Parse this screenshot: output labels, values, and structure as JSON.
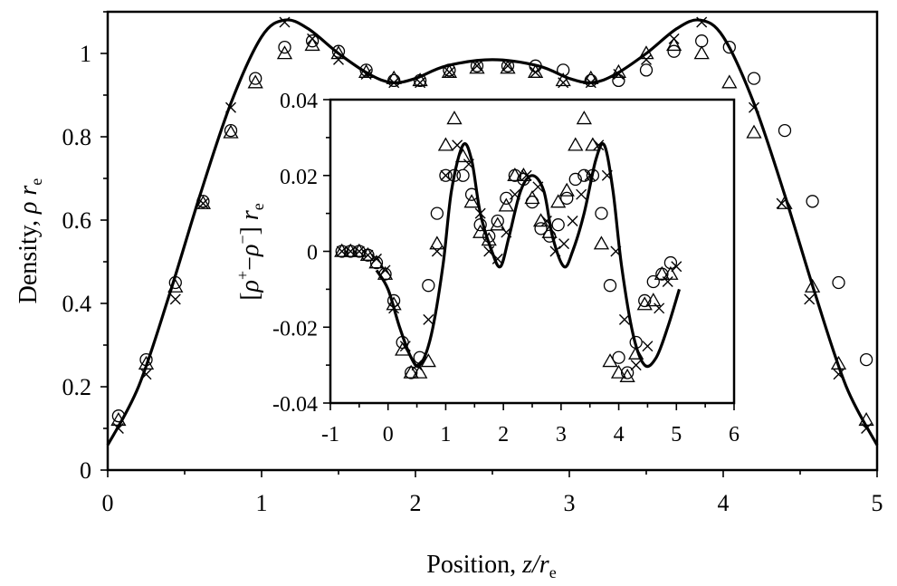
{
  "chart_data": [
    {
      "type": "line",
      "xlabel": {
        "main": "Position, ",
        "var": "z/r",
        "sub": "e"
      },
      "ylabel": {
        "main": "Density, ",
        "var": "ρ r",
        "sub": "e"
      },
      "xlim": [
        0,
        5
      ],
      "ylim": [
        0,
        1.1
      ],
      "xticks": [
        "0",
        "1",
        "2",
        "3",
        "4",
        "5"
      ],
      "yticks": [
        "0",
        "0.2",
        "0.4",
        "0.6",
        "0.8",
        "1"
      ],
      "grid": false,
      "series": [
        {
          "marker": "line",
          "x": [
            0,
            0.2,
            0.4,
            0.6,
            0.8,
            1.0,
            1.15,
            1.3,
            1.5,
            1.7,
            1.85,
            2.0,
            2.2,
            2.5,
            2.8,
            3.0,
            3.15,
            3.3,
            3.5,
            3.7,
            3.85,
            4.0,
            4.2,
            4.4,
            4.6,
            4.8,
            5.0
          ],
          "y": [
            0.06,
            0.2,
            0.42,
            0.66,
            0.88,
            1.04,
            1.08,
            1.06,
            1.0,
            0.95,
            0.93,
            0.94,
            0.97,
            0.985,
            0.97,
            0.94,
            0.93,
            0.95,
            1.0,
            1.06,
            1.08,
            1.04,
            0.88,
            0.66,
            0.42,
            0.2,
            0.06
          ]
        },
        {
          "marker": "circle",
          "x": [
            0.07,
            0.25,
            0.44,
            0.62,
            0.8,
            0.96,
            1.15,
            1.33,
            1.5,
            1.68,
            1.86,
            2.03,
            2.22,
            2.4,
            2.6,
            2.78,
            2.96,
            3.14,
            3.32,
            3.5,
            3.68,
            3.86,
            4.04,
            4.2,
            4.4,
            4.58,
            4.75,
            4.93
          ],
          "y": [
            0.13,
            0.265,
            0.45,
            0.645,
            0.815,
            0.94,
            1.015,
            1.03,
            1.005,
            0.96,
            0.935,
            0.935,
            0.96,
            0.97,
            0.97,
            0.97,
            0.96,
            0.935,
            0.935,
            0.96,
            1.005,
            1.03,
            1.015,
            0.94,
            0.815,
            0.645,
            0.45,
            0.265
          ]
        },
        {
          "marker": "triangle",
          "x": [
            0.07,
            0.25,
            0.44,
            0.62,
            0.8,
            0.96,
            1.15,
            1.33,
            1.5,
            1.68,
            1.86,
            2.03,
            2.22,
            2.4,
            2.6,
            2.78,
            2.96,
            3.14,
            3.32,
            3.5,
            3.68,
            3.86,
            4.04,
            4.2,
            4.4,
            4.58,
            4.75,
            4.93
          ],
          "y": [
            0.12,
            0.255,
            0.44,
            0.64,
            0.81,
            0.93,
            1.0,
            1.02,
            1.0,
            0.955,
            0.94,
            0.935,
            0.955,
            0.965,
            0.965,
            0.955,
            0.935,
            0.94,
            0.955,
            1.0,
            1.02,
            1.0,
            0.93,
            0.81,
            0.64,
            0.44,
            0.255,
            0.12
          ]
        },
        {
          "marker": "cross",
          "x": [
            0.07,
            0.25,
            0.44,
            0.62,
            0.8,
            1.15,
            1.33,
            1.5,
            1.68,
            1.86,
            2.03,
            2.22,
            2.4,
            2.6,
            2.78,
            2.96,
            3.14,
            3.32,
            3.5,
            3.68,
            3.86,
            4.2,
            4.38,
            4.56,
            4.75,
            4.93
          ],
          "y": [
            0.1,
            0.23,
            0.41,
            0.64,
            0.87,
            1.075,
            1.035,
            0.985,
            0.95,
            0.93,
            0.93,
            0.955,
            0.97,
            0.97,
            0.955,
            0.93,
            0.93,
            0.95,
            0.985,
            1.035,
            1.075,
            0.87,
            0.64,
            0.41,
            0.23,
            0.1
          ]
        }
      ]
    },
    {
      "type": "line",
      "xlabel": "",
      "ylabel": {
        "open": "[",
        "var1": "ρ",
        "sup1": "+",
        "minus": "−",
        "var2": "ρ",
        "sup2": "−",
        "close": "] ",
        "var3": "r",
        "sub": "e"
      },
      "xlim": [
        -1,
        6
      ],
      "ylim": [
        -0.04,
        0.04
      ],
      "xticks": [
        "-1",
        "0",
        "1",
        "2",
        "3",
        "4",
        "5",
        "6"
      ],
      "yticks": [
        "-0.04",
        "-0.02",
        "0",
        "0.02",
        "0.04"
      ],
      "grid": false,
      "series": [
        {
          "marker": "line",
          "x": [
            -0.2,
            0,
            0.2,
            0.4,
            0.55,
            0.75,
            0.95,
            1.1,
            1.3,
            1.45,
            1.6,
            1.8,
            1.95,
            2.1,
            2.3,
            2.5,
            2.7,
            2.85,
            3.05,
            3.2,
            3.4,
            3.6,
            3.75,
            3.9,
            4.05,
            4.25,
            4.45,
            4.65,
            4.85,
            5.05
          ],
          "y": [
            -0.005,
            -0.01,
            -0.02,
            -0.028,
            -0.03,
            -0.022,
            -0.004,
            0.016,
            0.028,
            0.024,
            0.01,
            0.0,
            -0.004,
            0.004,
            0.016,
            0.02,
            0.016,
            0.004,
            -0.004,
            0.0,
            0.01,
            0.024,
            0.028,
            0.016,
            -0.004,
            -0.022,
            -0.03,
            -0.028,
            -0.02,
            -0.01
          ]
        },
        {
          "marker": "circle",
          "x": [
            -0.8,
            -0.65,
            -0.5,
            -0.35,
            -0.2,
            -0.05,
            0.1,
            0.25,
            0.4,
            0.55,
            0.7,
            0.85,
            1.0,
            1.15,
            1.3,
            1.45,
            1.6,
            1.75,
            1.9,
            2.05,
            2.2,
            2.35,
            2.5,
            2.65,
            2.8,
            2.95,
            3.1,
            3.25,
            3.4,
            3.55,
            3.7,
            3.85,
            4.0,
            4.15,
            4.3,
            4.45,
            4.6,
            4.75,
            4.9
          ],
          "y": [
            0.0,
            0.0,
            0.0,
            -0.001,
            -0.003,
            -0.006,
            -0.013,
            -0.024,
            -0.032,
            -0.028,
            -0.009,
            0.01,
            0.02,
            0.02,
            0.02,
            0.015,
            0.007,
            0.004,
            0.008,
            0.014,
            0.02,
            0.019,
            0.013,
            0.006,
            0.004,
            0.007,
            0.014,
            0.019,
            0.02,
            0.02,
            0.01,
            -0.009,
            -0.028,
            -0.032,
            -0.024,
            -0.013,
            -0.008,
            -0.006,
            -0.003
          ]
        },
        {
          "marker": "triangle",
          "x": [
            -0.8,
            -0.65,
            -0.5,
            -0.35,
            -0.2,
            -0.05,
            0.1,
            0.25,
            0.4,
            0.55,
            0.7,
            0.85,
            1.0,
            1.15,
            1.3,
            1.45,
            1.6,
            1.75,
            1.9,
            2.05,
            2.2,
            2.35,
            2.5,
            2.65,
            2.8,
            2.95,
            3.1,
            3.25,
            3.4,
            3.55,
            3.7,
            3.85,
            4.0,
            4.15,
            4.3,
            4.45,
            4.6,
            4.75,
            4.9
          ],
          "y": [
            0.0,
            0.0,
            0.0,
            -0.001,
            -0.003,
            -0.006,
            -0.014,
            -0.026,
            -0.032,
            -0.032,
            -0.029,
            0.002,
            0.028,
            0.035,
            0.025,
            0.013,
            0.005,
            0.003,
            0.007,
            0.012,
            0.02,
            0.02,
            0.014,
            0.008,
            0.005,
            0.013,
            0.016,
            0.028,
            0.035,
            0.028,
            0.002,
            -0.029,
            -0.032,
            -0.033,
            -0.027,
            -0.014,
            -0.013,
            -0.006,
            -0.006
          ]
        },
        {
          "marker": "cross",
          "x": [
            -0.8,
            -0.65,
            -0.5,
            -0.35,
            -0.2,
            -0.05,
            0.1,
            0.3,
            0.5,
            0.7,
            0.85,
            1.0,
            1.2,
            1.4,
            1.6,
            1.75,
            1.9,
            2.05,
            2.2,
            2.4,
            2.6,
            2.75,
            2.9,
            3.05,
            3.2,
            3.35,
            3.5,
            3.65,
            3.8,
            3.95,
            4.1,
            4.3,
            4.5,
            4.7,
            4.85,
            5.0
          ],
          "y": [
            0.0,
            0.0,
            0.0,
            -0.001,
            -0.002,
            -0.005,
            -0.015,
            -0.025,
            -0.03,
            -0.018,
            0.0,
            0.02,
            0.028,
            0.023,
            0.01,
            0.0,
            -0.002,
            0.005,
            0.015,
            0.02,
            0.017,
            0.008,
            0.0,
            0.002,
            0.008,
            0.015,
            0.02,
            0.028,
            0.02,
            0.0,
            -0.018,
            -0.03,
            -0.025,
            -0.015,
            -0.008,
            -0.004
          ]
        }
      ]
    }
  ]
}
